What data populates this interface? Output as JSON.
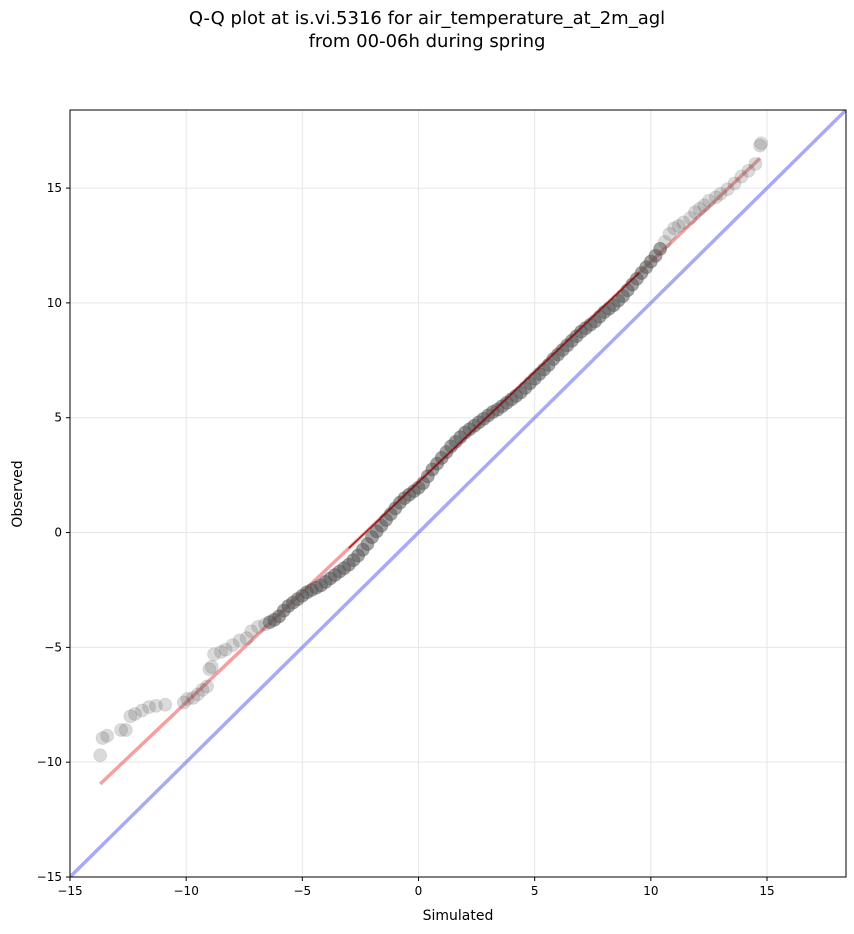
{
  "chart_data": {
    "type": "scatter",
    "title": "Q-Q plot at is.vi.5316 for air_temperature_at_2m_agl",
    "subtitle": "from 00-06h during spring",
    "xlabel": "Simulated",
    "ylabel": "Observed",
    "xlim": [
      -15,
      18.4
    ],
    "ylim": [
      -15,
      18.4
    ],
    "xticks": [
      -15,
      -10,
      -5,
      0,
      5,
      10,
      15
    ],
    "yticks": [
      -15,
      -10,
      -5,
      0,
      5,
      10,
      15
    ],
    "xtick_labels": [
      "−15",
      "−10",
      "−5",
      "0",
      "5",
      "10",
      "15"
    ],
    "ytick_labels": [
      "−15",
      "−10",
      "−5",
      "0",
      "5",
      "10",
      "15"
    ],
    "grid": true,
    "colors": {
      "points": "#555555",
      "fit_line": "#f08080",
      "identity_line": "#7b7bf0",
      "dense_overlay": "#8b0000"
    },
    "quantile_points": [
      [
        -13.7,
        -9.7
      ],
      [
        -13.6,
        -8.95
      ],
      [
        -13.4,
        -8.85
      ],
      [
        -12.8,
        -8.6
      ],
      [
        -12.6,
        -8.6
      ],
      [
        -12.4,
        -8.0
      ],
      [
        -12.2,
        -7.9
      ],
      [
        -11.9,
        -7.75
      ],
      [
        -11.6,
        -7.6
      ],
      [
        -11.3,
        -7.55
      ],
      [
        -10.9,
        -7.5
      ],
      [
        -10.1,
        -7.4
      ],
      [
        -9.95,
        -7.25
      ],
      [
        -9.7,
        -7.2
      ],
      [
        -9.5,
        -7.05
      ],
      [
        -9.3,
        -6.85
      ],
      [
        -9.1,
        -6.7
      ],
      [
        -9.0,
        -5.95
      ],
      [
        -8.9,
        -5.85
      ],
      [
        -8.8,
        -5.3
      ],
      [
        -8.5,
        -5.2
      ],
      [
        -8.3,
        -5.1
      ],
      [
        -8.0,
        -4.9
      ],
      [
        -7.7,
        -4.7
      ],
      [
        -7.4,
        -4.6
      ],
      [
        -7.2,
        -4.3
      ],
      [
        -6.9,
        -4.1
      ],
      [
        -6.6,
        -4.0
      ],
      [
        -6.4,
        -3.9
      ],
      [
        -6.2,
        -3.8
      ],
      [
        -6.0,
        -3.65
      ],
      [
        -5.8,
        -3.4
      ],
      [
        -5.6,
        -3.2
      ],
      [
        -5.4,
        -3.05
      ],
      [
        -5.2,
        -2.9
      ],
      [
        -5.0,
        -2.75
      ],
      [
        -4.8,
        -2.6
      ],
      [
        -4.6,
        -2.5
      ],
      [
        -4.4,
        -2.4
      ],
      [
        -4.2,
        -2.3
      ],
      [
        -4.0,
        -2.15
      ],
      [
        -3.8,
        -2.0
      ],
      [
        -3.6,
        -1.85
      ],
      [
        -3.4,
        -1.7
      ],
      [
        -3.2,
        -1.55
      ],
      [
        -3.0,
        -1.4
      ],
      [
        -2.8,
        -1.2
      ],
      [
        -2.6,
        -1.0
      ],
      [
        -2.4,
        -0.75
      ],
      [
        -2.2,
        -0.5
      ],
      [
        -2.0,
        -0.2
      ],
      [
        -1.8,
        0.05
      ],
      [
        -1.6,
        0.3
      ],
      [
        -1.4,
        0.55
      ],
      [
        -1.2,
        0.8
      ],
      [
        -1.0,
        1.05
      ],
      [
        -0.8,
        1.3
      ],
      [
        -0.6,
        1.5
      ],
      [
        -0.4,
        1.65
      ],
      [
        -0.2,
        1.8
      ],
      [
        0.0,
        1.95
      ],
      [
        0.2,
        2.15
      ],
      [
        0.4,
        2.45
      ],
      [
        0.6,
        2.75
      ],
      [
        0.8,
        3.0
      ],
      [
        1.0,
        3.25
      ],
      [
        1.2,
        3.5
      ],
      [
        1.4,
        3.75
      ],
      [
        1.6,
        3.95
      ],
      [
        1.8,
        4.15
      ],
      [
        2.0,
        4.35
      ],
      [
        2.2,
        4.5
      ],
      [
        2.4,
        4.65
      ],
      [
        2.6,
        4.8
      ],
      [
        2.8,
        4.95
      ],
      [
        3.0,
        5.1
      ],
      [
        3.2,
        5.25
      ],
      [
        3.4,
        5.35
      ],
      [
        3.6,
        5.5
      ],
      [
        3.8,
        5.65
      ],
      [
        4.0,
        5.8
      ],
      [
        4.2,
        5.95
      ],
      [
        4.4,
        6.1
      ],
      [
        4.6,
        6.3
      ],
      [
        4.8,
        6.5
      ],
      [
        5.0,
        6.7
      ],
      [
        5.2,
        6.9
      ],
      [
        5.4,
        7.1
      ],
      [
        5.6,
        7.3
      ],
      [
        5.8,
        7.55
      ],
      [
        6.0,
        7.75
      ],
      [
        6.2,
        7.95
      ],
      [
        6.4,
        8.15
      ],
      [
        6.6,
        8.35
      ],
      [
        6.8,
        8.55
      ],
      [
        7.0,
        8.75
      ],
      [
        7.2,
        8.9
      ],
      [
        7.4,
        9.05
      ],
      [
        7.6,
        9.2
      ],
      [
        7.8,
        9.4
      ],
      [
        8.0,
        9.6
      ],
      [
        8.2,
        9.75
      ],
      [
        8.4,
        9.9
      ],
      [
        8.6,
        10.1
      ],
      [
        8.8,
        10.3
      ],
      [
        9.0,
        10.55
      ],
      [
        9.2,
        10.8
      ],
      [
        9.4,
        11.05
      ],
      [
        9.6,
        11.3
      ],
      [
        9.8,
        11.55
      ],
      [
        10.0,
        11.8
      ],
      [
        10.2,
        12.05
      ],
      [
        10.4,
        12.35
      ],
      [
        10.6,
        12.65
      ],
      [
        10.8,
        13.0
      ],
      [
        11.0,
        13.25
      ],
      [
        11.2,
        13.35
      ],
      [
        11.4,
        13.5
      ],
      [
        11.7,
        13.7
      ],
      [
        11.9,
        13.95
      ],
      [
        12.1,
        14.1
      ],
      [
        12.3,
        14.25
      ],
      [
        12.5,
        14.45
      ],
      [
        12.8,
        14.6
      ],
      [
        13.0,
        14.75
      ],
      [
        13.3,
        14.95
      ],
      [
        13.6,
        15.2
      ],
      [
        13.9,
        15.5
      ],
      [
        14.2,
        15.75
      ],
      [
        14.5,
        16.05
      ],
      [
        14.7,
        16.85
      ],
      [
        14.75,
        16.95
      ]
    ],
    "fit_line": {
      "x": [
        -13.7,
        14.7
      ],
      "y": [
        -10.95,
        16.3
      ]
    },
    "identity_line": {
      "x": [
        -15,
        18.4
      ],
      "y": [
        -15,
        18.4
      ]
    }
  }
}
